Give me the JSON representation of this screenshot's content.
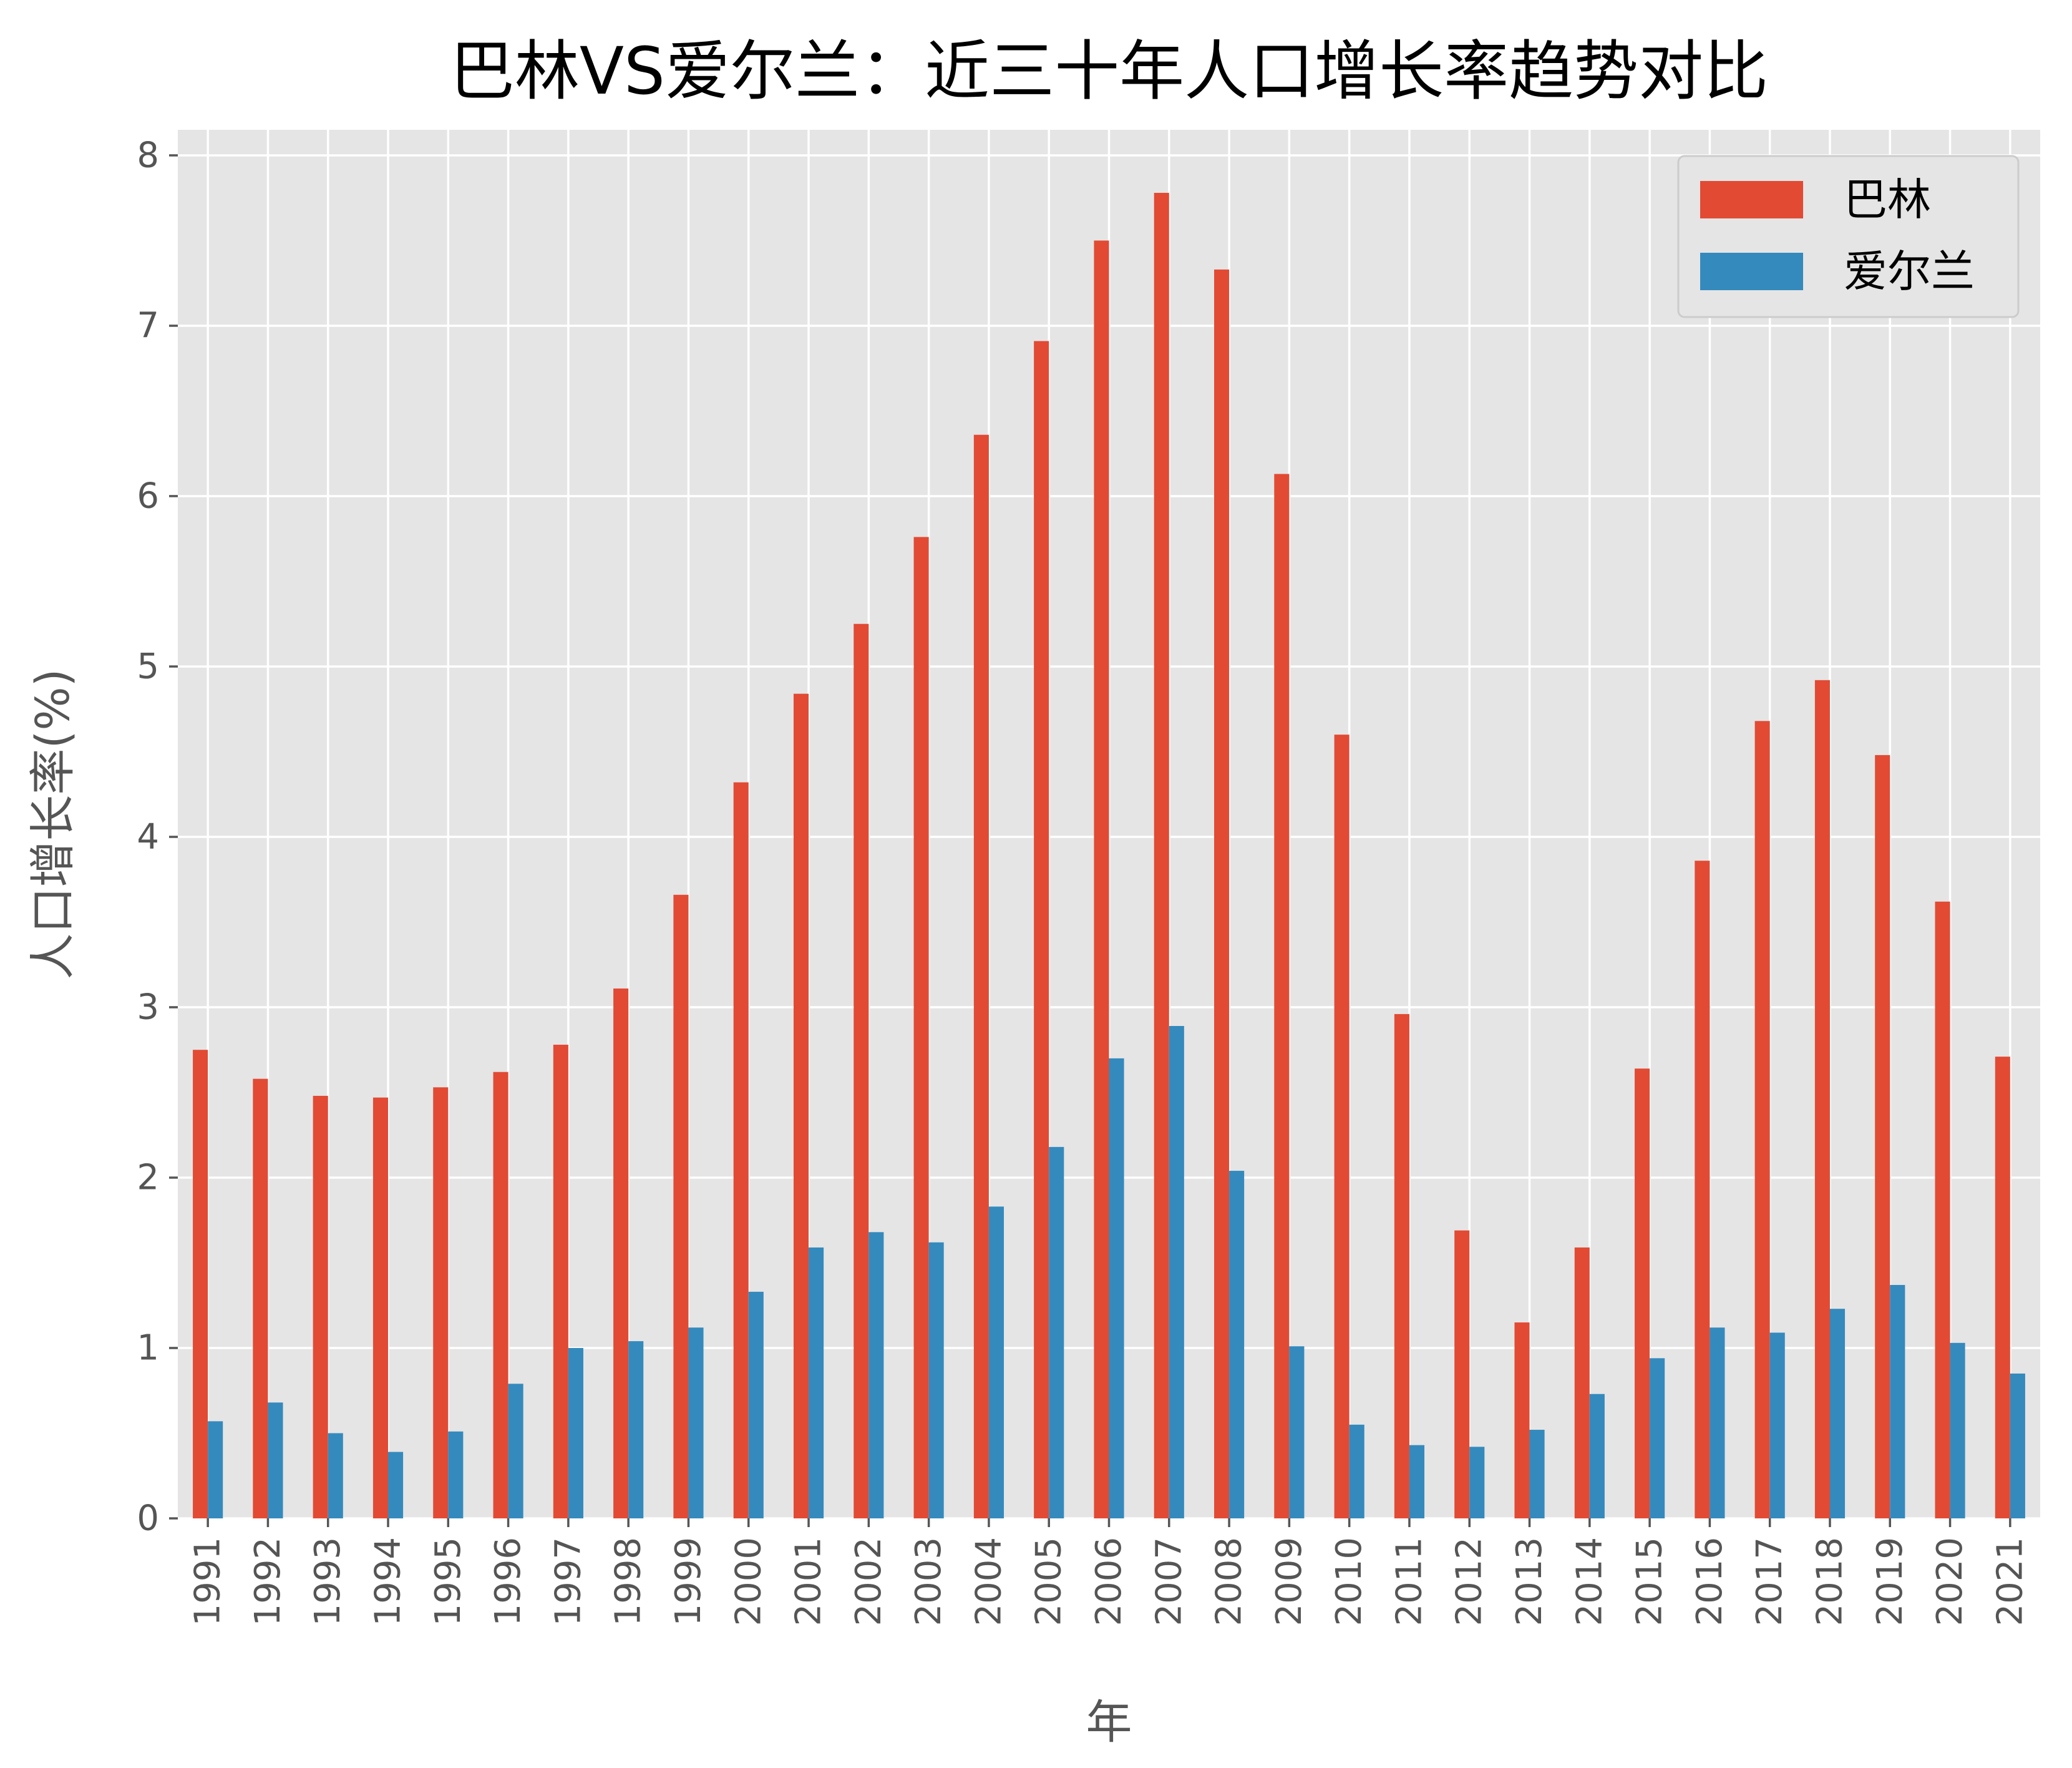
{
  "chart_data": {
    "type": "bar",
    "title": "巴林VS爱尔兰：近三十年人口增长率趋势对比",
    "xlabel": "年",
    "ylabel": "人口增长率(%)",
    "categories": [
      "1991",
      "1992",
      "1993",
      "1994",
      "1995",
      "1996",
      "1997",
      "1998",
      "1999",
      "2000",
      "2001",
      "2002",
      "2003",
      "2004",
      "2005",
      "2006",
      "2007",
      "2008",
      "2009",
      "2010",
      "2011",
      "2012",
      "2013",
      "2014",
      "2015",
      "2016",
      "2017",
      "2018",
      "2019",
      "2020",
      "2021"
    ],
    "yticks": [
      "0",
      "1",
      "2",
      "3",
      "4",
      "5",
      "6",
      "7",
      "8"
    ],
    "ylim": [
      0,
      8.15
    ],
    "grid": true,
    "legend_position": "upper right",
    "series": [
      {
        "name": "巴林",
        "color": "#E24A33",
        "values": [
          2.75,
          2.58,
          2.48,
          2.47,
          2.53,
          2.62,
          2.78,
          3.11,
          3.66,
          4.32,
          4.84,
          5.25,
          5.76,
          6.36,
          6.91,
          7.5,
          7.78,
          7.33,
          6.13,
          4.6,
          2.96,
          1.69,
          1.15,
          1.59,
          2.64,
          3.86,
          4.68,
          4.92,
          4.48,
          3.62,
          2.71
        ]
      },
      {
        "name": "爱尔兰",
        "color": "#348ABD",
        "values": [
          0.57,
          0.68,
          0.5,
          0.39,
          0.51,
          0.79,
          1.0,
          1.04,
          1.12,
          1.33,
          1.59,
          1.68,
          1.62,
          1.83,
          2.18,
          2.7,
          2.89,
          2.04,
          1.01,
          0.55,
          0.43,
          0.42,
          0.52,
          0.73,
          0.94,
          1.12,
          1.09,
          1.23,
          1.37,
          1.03,
          0.85
        ]
      }
    ]
  },
  "colors": {
    "plot_background": "#E5E5E5",
    "grid": "#FFFFFF",
    "text": "#555555"
  }
}
